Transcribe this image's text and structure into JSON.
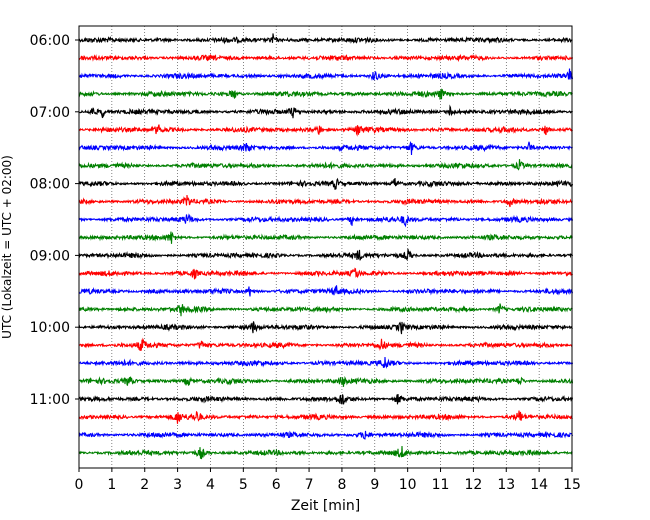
{
  "chart_data": {
    "type": "line",
    "title": "",
    "xlabel": "Zeit  [min]",
    "ylabel": "UTC (Lokalzeit = UTC + 02:00)",
    "xlim": [
      0,
      15
    ],
    "x_ticks": [
      "0",
      "1",
      "2",
      "3",
      "4",
      "5",
      "6",
      "7",
      "8",
      "9",
      "10",
      "11",
      "12",
      "13",
      "14",
      "15"
    ],
    "y_tick_labels": [
      "06:00",
      "07:00",
      "08:00",
      "09:00",
      "10:00",
      "11:00"
    ],
    "row_interval_minutes": 15,
    "row_count": 24,
    "first_row_time": "06:00",
    "last_row_time": "11:45",
    "grid": "vertical",
    "colors": [
      "#000000",
      "#ff0000",
      "#0000ff",
      "#008000"
    ],
    "events": [
      {
        "row": 0,
        "minutes": [
          5.9
        ]
      },
      {
        "row": 2,
        "minutes": [
          9.0,
          14.9
        ]
      },
      {
        "row": 3,
        "minutes": [
          4.7,
          11.0
        ]
      },
      {
        "row": 4,
        "minutes": [
          0.4,
          0.7,
          6.5,
          11.3
        ]
      },
      {
        "row": 5,
        "minutes": [
          2.4,
          7.3,
          8.5,
          14.2
        ]
      },
      {
        "row": 6,
        "minutes": [
          5.1,
          10.1,
          13.7
        ]
      },
      {
        "row": 7,
        "minutes": [
          13.4
        ]
      },
      {
        "row": 8,
        "minutes": [
          7.8,
          9.6
        ]
      },
      {
        "row": 9,
        "minutes": [
          3.3,
          13.1
        ]
      },
      {
        "row": 10,
        "minutes": [
          3.3,
          8.3,
          9.9
        ]
      },
      {
        "row": 11,
        "minutes": [
          2.8
        ]
      },
      {
        "row": 12,
        "minutes": [
          8.5,
          10.0
        ]
      },
      {
        "row": 13,
        "minutes": [
          3.5,
          8.4
        ]
      },
      {
        "row": 14,
        "minutes": [
          5.2,
          7.8
        ]
      },
      {
        "row": 15,
        "minutes": [
          3.1,
          12.8
        ]
      },
      {
        "row": 16,
        "minutes": [
          5.3,
          9.8
        ]
      },
      {
        "row": 17,
        "minutes": [
          1.9,
          3.7,
          9.2
        ]
      },
      {
        "row": 18,
        "minutes": [
          9.3
        ]
      },
      {
        "row": 19,
        "minutes": [
          1.5,
          3.3,
          8.0,
          13.4
        ]
      },
      {
        "row": 20,
        "minutes": [
          8.0,
          9.7
        ]
      },
      {
        "row": 21,
        "minutes": [
          3.0,
          3.6,
          13.4
        ]
      },
      {
        "row": 22,
        "minutes": [
          8.7
        ]
      },
      {
        "row": 23,
        "minutes": [
          3.7,
          9.8
        ]
      }
    ]
  }
}
